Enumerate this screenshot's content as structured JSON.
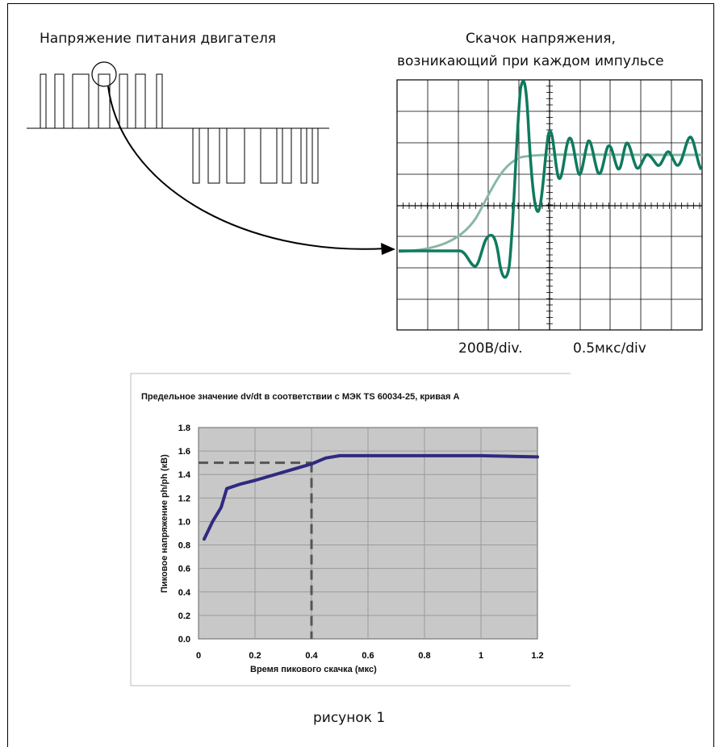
{
  "labels": {
    "motor_supply_voltage": "Напряжение питания двигателя",
    "spike_title_line1": "Скачок напряжения,",
    "spike_title_line2": "возникающий при каждом импульсе",
    "volts_per_div": "200В/div.",
    "time_per_div": "0.5мкс/div",
    "figure_caption": "рисунок 1"
  },
  "colors": {
    "scope_trace": "#0f7a5e",
    "scope_trace_light": "#88b8a4",
    "chart_line": "#2f2a80",
    "plot_area": "#c8c8c8",
    "reference_line": "#555555"
  },
  "chart_data": {
    "type": "line",
    "title": "Предельное значение dv/dt в соответствии с МЭК TS 60034-25, кривая А",
    "xlabel": "Время пикового скачка (мкс)",
    "ylabel": "Пиковое напряжение ph/ph (кВ)",
    "xlim": [
      0,
      1.2
    ],
    "ylim": [
      0,
      1.8
    ],
    "x_ticks": [
      "0",
      "0.2",
      "0.4",
      "0.6",
      "0.8",
      "1",
      "1.2"
    ],
    "y_ticks": [
      "0.0",
      "0.2",
      "0.4",
      "0.6",
      "0.8",
      "1.0",
      "1.2",
      "1.4",
      "1.6",
      "1.8"
    ],
    "grid": true,
    "series": [
      {
        "x": [
          0.02,
          0.05,
          0.08,
          0.1,
          0.15,
          0.2,
          0.3,
          0.4,
          0.45,
          0.5,
          0.6,
          0.8,
          1.0,
          1.2
        ],
        "y": [
          0.85,
          1.0,
          1.12,
          1.28,
          1.32,
          1.35,
          1.42,
          1.49,
          1.54,
          1.56,
          1.56,
          1.56,
          1.56,
          1.55
        ]
      }
    ],
    "annotations": [
      {
        "type": "reference-lines",
        "x": 0.4,
        "y": 1.5
      }
    ]
  }
}
